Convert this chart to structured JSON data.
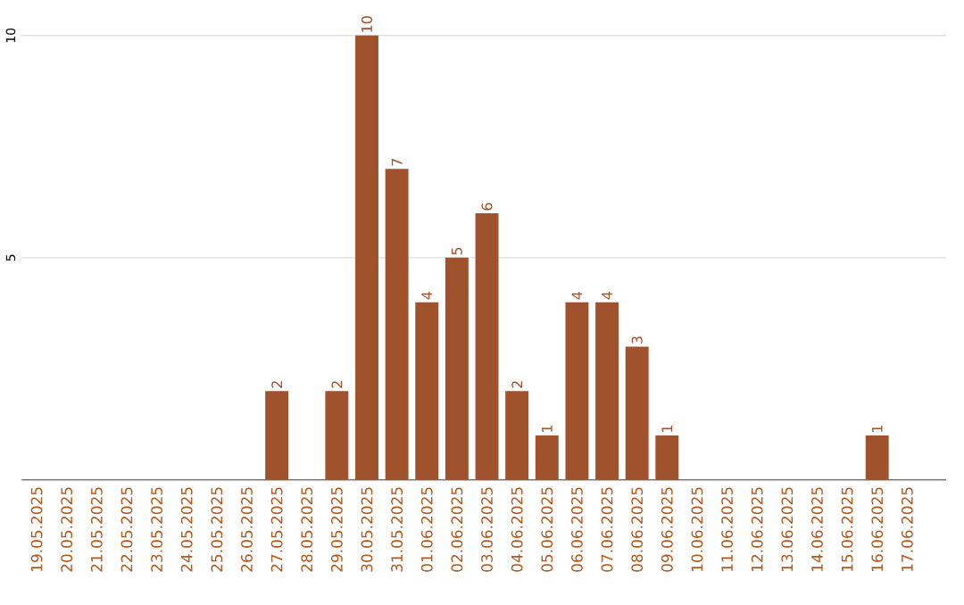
{
  "chart_data": {
    "type": "bar",
    "categories": [
      "19.05.2025",
      "20.05.2025",
      "21.05.2025",
      "22.05.2025",
      "23.05.2025",
      "24.05.2025",
      "25.05.2025",
      "26.05.2025",
      "27.05.2025",
      "28.05.2025",
      "29.05.2025",
      "30.05.2025",
      "31.05.2025",
      "01.06.2025",
      "02.06.2025",
      "03.06.2025",
      "04.06.2025",
      "05.06.2025",
      "06.06.2025",
      "07.06.2025",
      "08.06.2025",
      "09.06.2025",
      "10.06.2025",
      "11.06.2025",
      "12.06.2025",
      "13.06.2025",
      "14.06.2025",
      "15.06.2025",
      "16.06.2025",
      "17.06.2025"
    ],
    "values": [
      0,
      0,
      0,
      0,
      0,
      0,
      0,
      0,
      2,
      0,
      2,
      10,
      7,
      4,
      5,
      6,
      2,
      1,
      4,
      4,
      3,
      1,
      0,
      0,
      0,
      0,
      0,
      0,
      1,
      0
    ],
    "value_labels": [
      null,
      null,
      null,
      null,
      null,
      null,
      null,
      null,
      "2",
      null,
      "2",
      "10",
      "7",
      "4",
      "5",
      "6",
      "2",
      "1",
      "4",
      "4",
      "3",
      "1",
      null,
      null,
      null,
      null,
      null,
      null,
      "1",
      null
    ],
    "color": "#a0522d",
    "ylim": [
      0,
      10
    ],
    "yticks": [
      5,
      10
    ],
    "grid": "y"
  }
}
